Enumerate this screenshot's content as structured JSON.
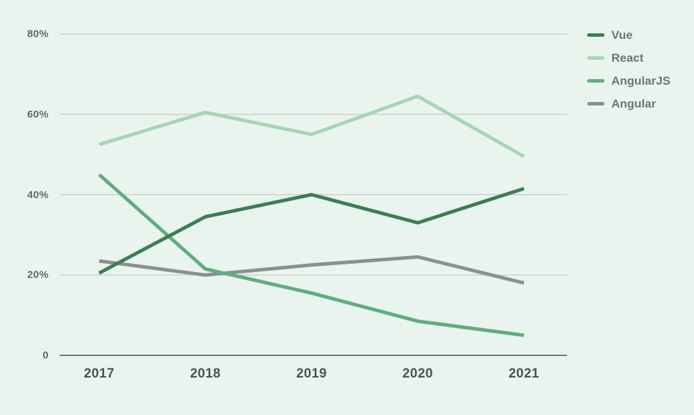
{
  "chart_data": {
    "type": "line",
    "title": "",
    "categories": [
      "2017",
      "2018",
      "2019",
      "2020",
      "2021"
    ],
    "series": [
      {
        "name": "Vue",
        "color": "#3d7c56",
        "values": [
          20.5,
          34.5,
          40.0,
          33.0,
          41.5
        ]
      },
      {
        "name": "React",
        "color": "#a7d4b7",
        "values": [
          52.5,
          60.5,
          55.0,
          64.5,
          49.5
        ]
      },
      {
        "name": "AngularJS",
        "color": "#5fad80",
        "values": [
          45.0,
          21.5,
          15.5,
          8.5,
          5.0
        ]
      },
      {
        "name": "Angular",
        "color": "#8b8f93",
        "values": [
          23.5,
          20.0,
          22.5,
          24.5,
          18.0
        ]
      }
    ],
    "yticks": [
      0,
      20,
      40,
      60,
      80
    ],
    "ytick_labels": [
      "0",
      "20%",
      "40%",
      "60%",
      "80%"
    ],
    "ylim": [
      0,
      80
    ],
    "grid": true,
    "legend_position": "right"
  },
  "colors": {
    "background": "#e9f4ee",
    "gridline": "#c4cbc7",
    "baseline": "#6e7477",
    "y_label": "#62686b",
    "x_label": "#4b5154",
    "legend_label": "#6e7477"
  }
}
